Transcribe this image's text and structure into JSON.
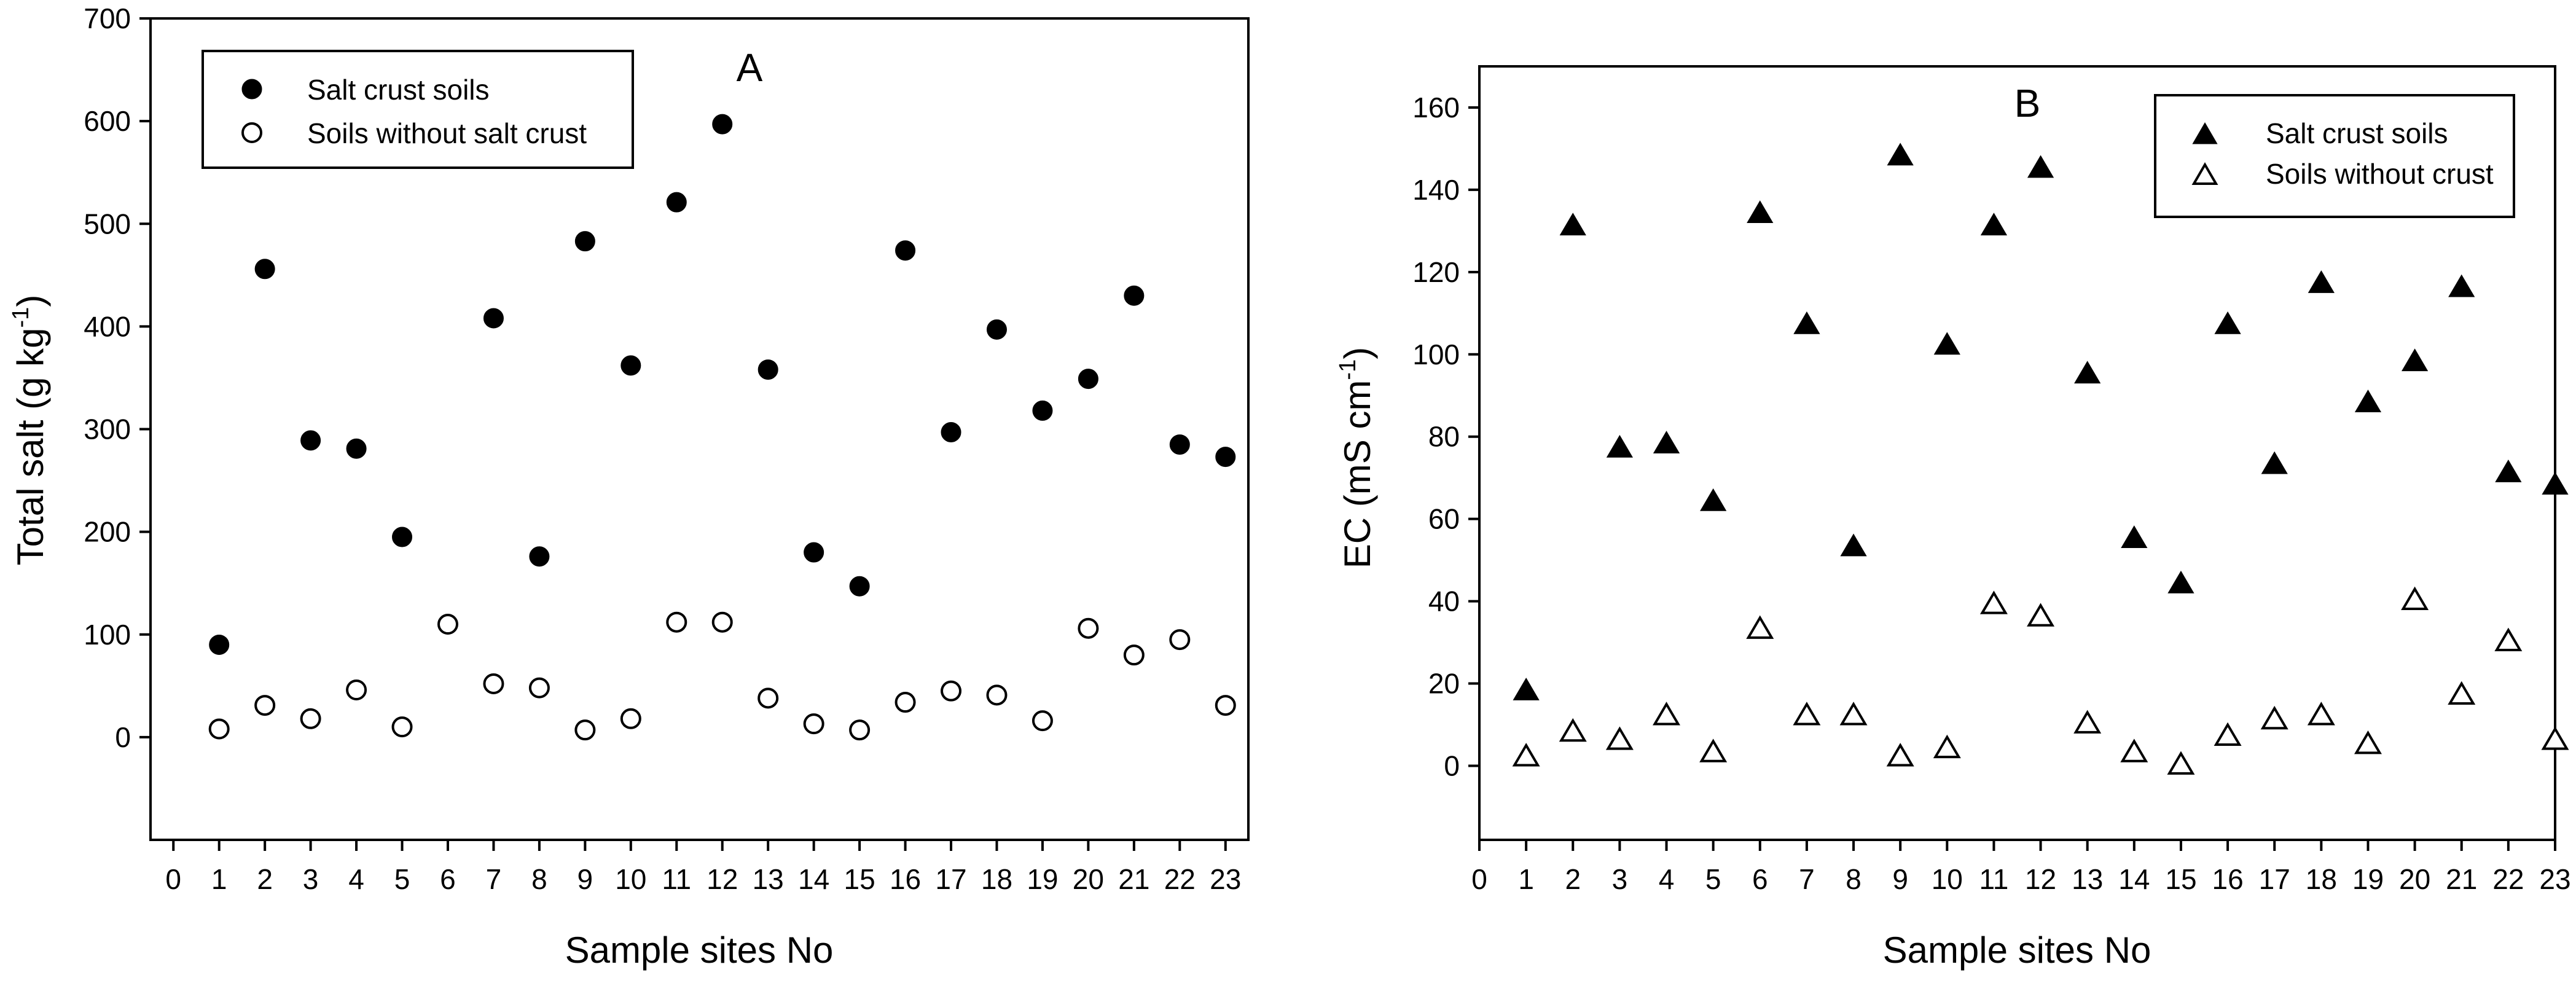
{
  "chart_data": [
    {
      "type": "scatter",
      "panel_label": "A",
      "xlabel": "Sample sites No",
      "ylabel_main": "Total salt  (g kg",
      "ylabel_sup": "-1",
      "ylabel_tail": ")",
      "xlim": [
        -0.5,
        23.5
      ],
      "ylim": [
        -100,
        700
      ],
      "xticks": [
        0,
        1,
        2,
        3,
        4,
        5,
        6,
        7,
        8,
        9,
        10,
        11,
        12,
        13,
        14,
        15,
        16,
        17,
        18,
        19,
        20,
        21,
        22,
        23
      ],
      "yticks": [
        0,
        100,
        200,
        300,
        400,
        500,
        600,
        700
      ],
      "legend": {
        "placement": "top-left",
        "entries": [
          "Salt crust soils",
          "Soils without salt crust"
        ]
      },
      "series": [
        {
          "name": "Salt crust soils",
          "marker": "filled-circle",
          "points": [
            [
              1,
              90
            ],
            [
              2,
              456
            ],
            [
              3,
              289
            ],
            [
              4,
              281
            ],
            [
              5,
              195
            ],
            [
              7,
              408
            ],
            [
              8,
              176
            ],
            [
              9,
              483
            ],
            [
              10,
              362
            ],
            [
              11,
              521
            ],
            [
              12,
              597
            ],
            [
              13,
              358
            ],
            [
              14,
              180
            ],
            [
              15,
              147
            ],
            [
              16,
              474
            ],
            [
              17,
              297
            ],
            [
              18,
              397
            ],
            [
              19,
              318
            ],
            [
              20,
              349
            ],
            [
              21,
              430
            ],
            [
              22,
              285
            ],
            [
              23,
              273
            ]
          ]
        },
        {
          "name": "Soils without salt crust",
          "marker": "open-circle",
          "points": [
            [
              1,
              8
            ],
            [
              2,
              31
            ],
            [
              3,
              18
            ],
            [
              4,
              46
            ],
            [
              5,
              10
            ],
            [
              6,
              110
            ],
            [
              7,
              52
            ],
            [
              8,
              48
            ],
            [
              9,
              7
            ],
            [
              10,
              18
            ],
            [
              11,
              112
            ],
            [
              12,
              112
            ],
            [
              13,
              38
            ],
            [
              14,
              13
            ],
            [
              15,
              7
            ],
            [
              16,
              34
            ],
            [
              17,
              45
            ],
            [
              18,
              41
            ],
            [
              19,
              16
            ],
            [
              20,
              106
            ],
            [
              21,
              80
            ],
            [
              22,
              95
            ],
            [
              23,
              31
            ]
          ]
        }
      ]
    },
    {
      "type": "scatter",
      "panel_label": "B",
      "xlabel": "Sample sites No",
      "ylabel_main": "EC (mS cm",
      "ylabel_sup": "-1",
      "ylabel_tail": ")",
      "xlim": [
        0,
        23
      ],
      "ylim": [
        -18,
        170
      ],
      "xticks": [
        0,
        1,
        2,
        3,
        4,
        5,
        6,
        7,
        8,
        9,
        10,
        11,
        12,
        13,
        14,
        15,
        16,
        17,
        18,
        19,
        20,
        21,
        22,
        23
      ],
      "yticks": [
        0,
        20,
        40,
        60,
        80,
        100,
        120,
        140,
        160
      ],
      "legend": {
        "placement": "top-right",
        "entries": [
          "Salt crust soils",
          "Soils without crust"
        ]
      },
      "series": [
        {
          "name": "Salt crust soils",
          "marker": "filled-triangle",
          "points": [
            [
              1,
              18
            ],
            [
              2,
              131
            ],
            [
              3,
              77
            ],
            [
              4,
              78
            ],
            [
              5,
              64
            ],
            [
              6,
              134
            ],
            [
              7,
              107
            ],
            [
              8,
              53
            ],
            [
              9,
              148
            ],
            [
              10,
              102
            ],
            [
              11,
              131
            ],
            [
              12,
              145
            ],
            [
              13,
              95
            ],
            [
              14,
              55
            ],
            [
              15,
              44
            ],
            [
              16,
              107
            ],
            [
              17,
              73
            ],
            [
              18,
              117
            ],
            [
              19,
              88
            ],
            [
              20,
              98
            ],
            [
              21,
              116
            ],
            [
              22,
              71
            ],
            [
              23,
              68
            ]
          ]
        },
        {
          "name": "Soils without crust",
          "marker": "open-triangle",
          "points": [
            [
              1,
              2
            ],
            [
              2,
              8
            ],
            [
              3,
              6
            ],
            [
              4,
              12
            ],
            [
              5,
              3
            ],
            [
              6,
              33
            ],
            [
              7,
              12
            ],
            [
              8,
              12
            ],
            [
              9,
              2
            ],
            [
              10,
              4
            ],
            [
              11,
              39
            ],
            [
              12,
              36
            ],
            [
              13,
              10
            ],
            [
              14,
              3
            ],
            [
              15,
              0
            ],
            [
              16,
              7
            ],
            [
              17,
              11
            ],
            [
              18,
              12
            ],
            [
              19,
              5
            ],
            [
              20,
              40
            ],
            [
              21,
              17
            ],
            [
              22,
              30
            ],
            [
              23,
              6
            ]
          ]
        }
      ]
    }
  ]
}
